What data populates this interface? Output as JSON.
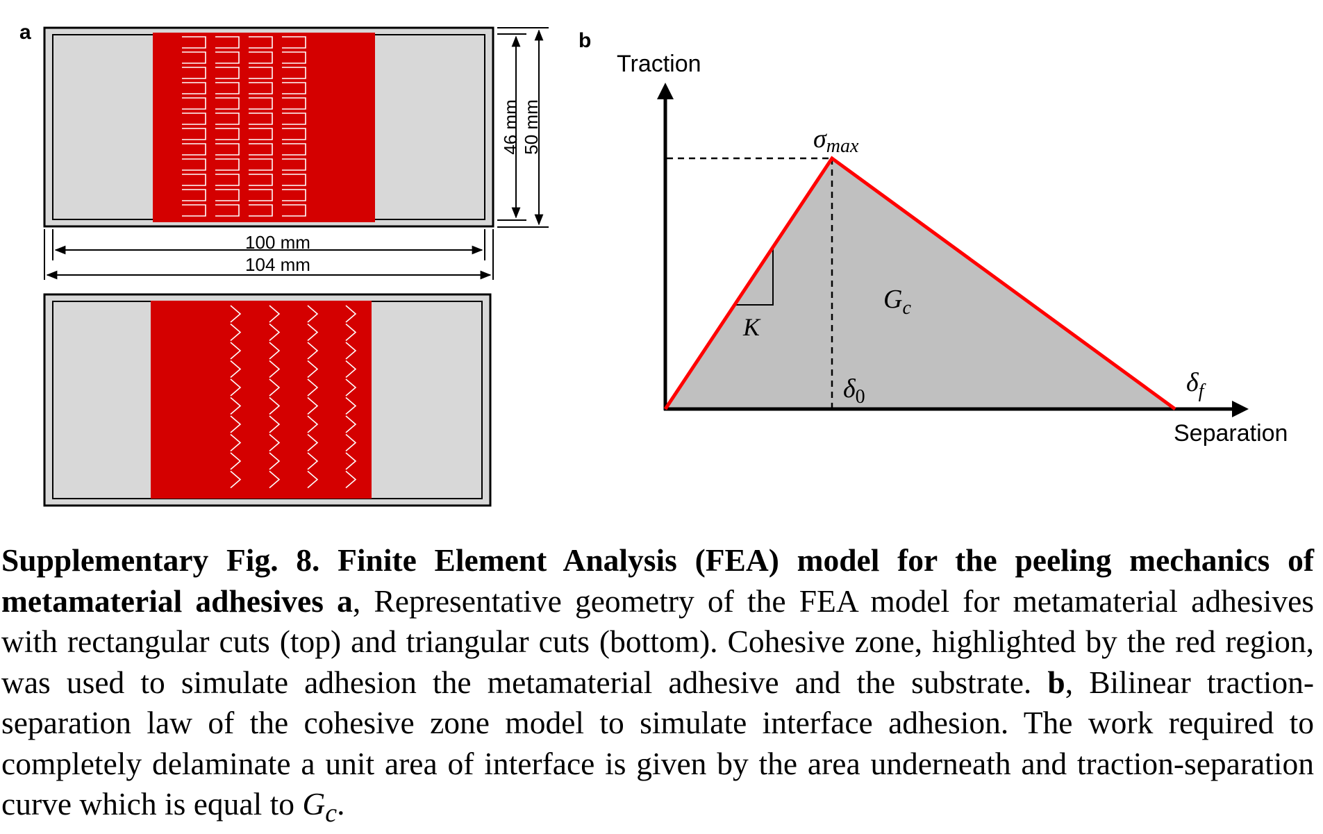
{
  "panel_a": {
    "label": "a",
    "dim_height_inner": "46 mm",
    "dim_height_outer": "50 mm",
    "dim_width_inner": "100 mm",
    "dim_width_outer": "104 mm",
    "colors": {
      "substrate": "#d8d8d8",
      "cohesive_zone": "#d40000",
      "frame": "#000000"
    }
  },
  "panel_b": {
    "label": "b",
    "y_axis_label": "Traction",
    "x_axis_label": "Separation",
    "sigma_symbol": "σ",
    "sigma_sub": "max",
    "delta_symbol": "δ",
    "delta0_sub": "0",
    "deltaf_sub": "f",
    "stiffness_label": "K",
    "energy_symbol": "G",
    "energy_sub": "c",
    "colors": {
      "law": "#ff0000",
      "fill": "#c0c0c0"
    }
  },
  "caption": {
    "title": "Supplementary Fig. 8.  Finite Element Analysis (FEA) model for the peeling mechanics of metamaterial adhesives",
    "a_label": "a",
    "a_text": ", Representative geometry of the FEA model for metamaterial adhesives with rectangular cuts (top) and triangular cuts (bottom). Cohesive zone, highlighted by the red region, was used to simulate adhesion the metamaterial adhesive and the substrate. ",
    "b_label": "b",
    "b_text": ", Bilinear traction-separation law of the cohesive zone model to simulate interface adhesion. The work required to completely delaminate a unit area of interface is given by the area underneath and traction-separation curve which is equal to ",
    "end_symbol": "G",
    "end_sub": "c",
    "end_period": "."
  }
}
